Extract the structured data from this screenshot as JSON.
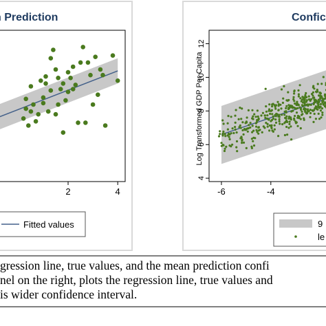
{
  "chart_data": [
    {
      "type": "scatter",
      "title": "n Prediction",
      "xlabel": "",
      "ylabel": "",
      "xlim": [
        -0.8,
        4.3
      ],
      "ylim": [
        2.0,
        12.8
      ],
      "xticks": [
        2,
        4
      ],
      "legend": {
        "placement": "bottom",
        "entries": [
          "Fitted values"
        ]
      },
      "fit": {
        "x": [
          -0.8,
          4.0
        ],
        "y": [
          6.6,
          9.9
        ]
      },
      "band": {
        "x": [
          -0.8,
          4.0
        ],
        "lower": [
          5.7,
          9.0
        ],
        "upper": [
          7.5,
          10.8
        ]
      },
      "points": {
        "x": [
          0.3,
          0.5,
          0.2,
          0.4,
          0.9,
          1.1,
          1.3,
          1.5,
          1.8,
          2.0,
          2.2,
          2.5,
          3.0,
          3.5,
          4.0,
          1.0,
          1.2,
          1.6,
          1.9,
          2.3,
          2.7,
          3.2,
          3.8,
          0.8,
          1.4,
          1.7,
          2.1,
          2.6,
          3.4,
          0.6,
          1.0,
          1.5,
          2.4,
          3.1,
          0.7,
          1.3,
          2.9,
          0.3,
          1.8,
          2.0,
          2.8,
          3.3,
          1.1,
          0.5,
          1.6,
          2.2
        ],
        "y": [
          7.2,
          8.8,
          6.5,
          6.0,
          9.2,
          9.5,
          8.5,
          10.0,
          9.0,
          9.8,
          10.2,
          10.5,
          7.5,
          6.0,
          9.2,
          7.6,
          7.0,
          9.4,
          7.8,
          8.9,
          6.2,
          8.2,
          11.0,
          6.8,
          11.4,
          8.6,
          9.4,
          11.6,
          9.6,
          7.5,
          8.0,
          6.8,
          6.2,
          10.9,
          6.3,
          10.8,
          9.6,
          7.9,
          5.5,
          8.4,
          10.5,
          10.0,
          9.0,
          7.0,
          7.5,
          8.6
        ]
      }
    },
    {
      "type": "scatter",
      "title": "Confic",
      "xlabel": "",
      "ylabel": "Log Transformed GDP Per Capita",
      "xlim": [
        -6.5,
        -1.6
      ],
      "ylim": [
        3.8,
        12.8
      ],
      "xticks": [
        -6,
        -4
      ],
      "yticks": [
        4,
        6,
        8,
        10,
        12
      ],
      "legend": {
        "placement": "bottom",
        "entries": [
          "9",
          "le"
        ]
      },
      "fit": {
        "x": [
          -6.0,
          -1.6
        ],
        "y": [
          6.6,
          8.8
        ]
      },
      "band": {
        "x": [
          -6.0,
          -1.6
        ],
        "lower": [
          4.85,
          7.0
        ],
        "upper": [
          8.3,
          10.5
        ]
      }
    }
  ],
  "colors": {
    "points": "#4a7a1e",
    "band": "#c8c8c8",
    "fit": "#44618a",
    "title": "#1e3a5f",
    "frame": "#d9d9d9"
  },
  "caption": {
    "line1": "gression line, true values, and the mean prediction confi",
    "line2": "nel on the right, plots the regression line, true values and",
    "line3": "is wider confidence interval."
  }
}
